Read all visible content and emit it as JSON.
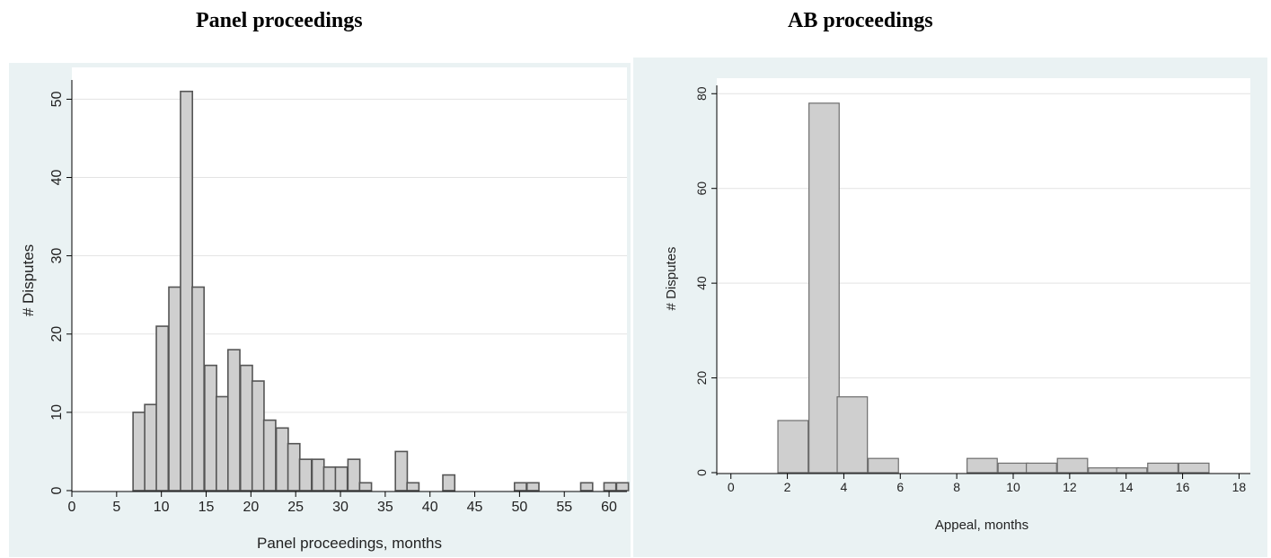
{
  "headings": {
    "left": "Panel proceedings",
    "right": "AB proceedings"
  },
  "colors": {
    "panel_bg": "#eaf2f3",
    "plot_bg": "#ffffff",
    "bar_fill": "#cfcfcf",
    "left_bar_stroke": "#555555",
    "right_bar_stroke": "#6e6e6e",
    "gridline": "#e3e3e3"
  },
  "chart_data": [
    {
      "type": "bar",
      "subtype": "histogram",
      "title": "Panel proceedings",
      "xlabel": "Panel proceedings, months",
      "ylabel": "# Disputes",
      "xlim": [
        0,
        62
      ],
      "ylim": [
        0,
        52
      ],
      "xticks": [
        0,
        5,
        10,
        15,
        20,
        25,
        30,
        35,
        40,
        45,
        50,
        55,
        60
      ],
      "yticks": [
        0,
        10,
        20,
        30,
        40,
        50
      ],
      "grid": true,
      "bin_width": 1.33,
      "x": [
        7.5,
        8.8,
        10.1,
        11.5,
        12.8,
        14.1,
        15.5,
        16.8,
        18.1,
        19.5,
        20.8,
        22.1,
        23.5,
        24.8,
        26.1,
        27.5,
        28.8,
        30.1,
        31.5,
        32.8,
        36.8,
        38.1,
        42.1,
        50.1,
        51.5,
        57.5,
        60.1,
        61.5
      ],
      "values": [
        10,
        11,
        21,
        26,
        51,
        26,
        16,
        12,
        18,
        16,
        14,
        9,
        8,
        6,
        4,
        4,
        3,
        3,
        4,
        1,
        5,
        1,
        2,
        1,
        1,
        1,
        1,
        1
      ]
    },
    {
      "type": "bar",
      "subtype": "histogram",
      "title": "AB proceedings",
      "xlabel": "Appeal, months",
      "ylabel": "# Disputes",
      "xlim": [
        -0.5,
        18.4
      ],
      "ylim": [
        0,
        81
      ],
      "xticks": [
        0,
        2,
        4,
        6,
        8,
        10,
        12,
        14,
        16,
        18
      ],
      "yticks": [
        0,
        20,
        40,
        60,
        80
      ],
      "grid": true,
      "bin_width": 1.07,
      "x": [
        2.2,
        3.3,
        4.3,
        5.4,
        8.9,
        10.0,
        11.0,
        12.1,
        13.2,
        14.2,
        15.3,
        16.4
      ],
      "values": [
        11,
        78,
        16,
        3,
        3,
        2,
        2,
        3,
        1,
        1,
        2,
        2
      ]
    }
  ]
}
